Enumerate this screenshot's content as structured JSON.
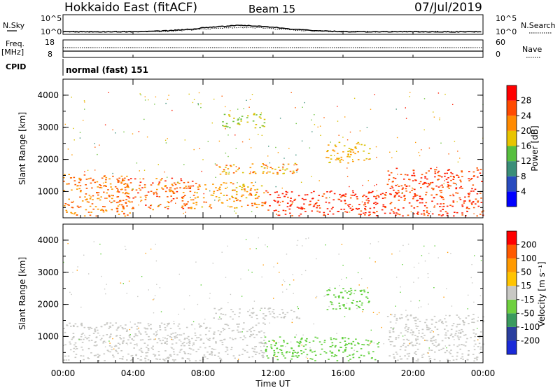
{
  "header": {
    "title": "Hokkaido East (fitACF)",
    "beam": "Beam 15",
    "date": "07/Jul/2019"
  },
  "sky_panel": {
    "left_label": "N.Sky",
    "left_ticks": [
      "10^5",
      "10^0"
    ],
    "right_label": "N.Search",
    "right_ticks": [
      "10^5",
      "10^0"
    ]
  },
  "freq_panel": {
    "left_label_1": "Freq.",
    "left_label_2": "[MHz]",
    "left_ticks": [
      "18",
      "8"
    ],
    "right_label": "Nave",
    "right_ticks": [
      "60",
      "0"
    ]
  },
  "cpid_panel": {
    "label": "CPID",
    "mode_text": "normal (fast) 151"
  },
  "power_panel": {
    "ylabel": "Slant Range [km]",
    "yticks": [
      "4000",
      "3000",
      "2000",
      "1000"
    ],
    "colorbar_label": "Power [dB]",
    "colorbar_ticks": [
      "28",
      "24",
      "20",
      "16",
      "12",
      "8",
      "4"
    ],
    "colorbar_colors": [
      "#0000ff",
      "#284bbf",
      "#3a8e78",
      "#57bf3f",
      "#e8c400",
      "#ff8a00",
      "#ff4a00",
      "#ff0000"
    ]
  },
  "velocity_panel": {
    "ylabel": "Slant Range [km]",
    "yticks": [
      "4000",
      "3000",
      "2000",
      "1000"
    ],
    "colorbar_label": "Velocity [m s⁻¹]",
    "colorbar_ticks": [
      "200",
      "100",
      "50",
      "15",
      "-15",
      "-50",
      "-100",
      "-200"
    ],
    "colorbar_colors": [
      "#ff0000",
      "#ff5a00",
      "#ff9a00",
      "#ffc400",
      "#c8c8c4",
      "#6fd03f",
      "#3a9a5e",
      "#2a3e9e",
      "#1a2ad8"
    ]
  },
  "x_axis": {
    "ticks": [
      "00:00",
      "04:00",
      "08:00",
      "12:00",
      "16:00",
      "20:00",
      "00:00"
    ],
    "label": "Time UT"
  },
  "chart_data": {
    "type": "heatmap",
    "x_range_hours": [
      0,
      24
    ],
    "y_range_km": [
      180,
      4500
    ],
    "power_regions": [
      {
        "t0": 0.0,
        "t1": 3.8,
        "r0": 250,
        "r1": 1550,
        "power_db": 22
      },
      {
        "t0": 3.0,
        "t1": 7.5,
        "r0": 450,
        "r1": 1450,
        "power_db": 24
      },
      {
        "t0": 7.5,
        "t1": 11.5,
        "r0": 500,
        "r1": 1300,
        "power_db": 20
      },
      {
        "t0": 11.5,
        "t1": 18.5,
        "r0": 250,
        "r1": 1050,
        "power_db": 28
      },
      {
        "t0": 8.5,
        "t1": 13.5,
        "r0": 1550,
        "r1": 1900,
        "power_db": 20
      },
      {
        "t0": 15.0,
        "t1": 17.5,
        "r0": 1900,
        "r1": 2550,
        "power_db": 18
      },
      {
        "t0": 18.5,
        "t1": 24.0,
        "r0": 250,
        "r1": 1750,
        "power_db": 26
      },
      {
        "t0": 9.0,
        "t1": 11.5,
        "r0": 3000,
        "r1": 3450,
        "power_db": 14
      }
    ],
    "velocity_regions": [
      {
        "t0": 0.0,
        "t1": 11.5,
        "r0": 250,
        "r1": 1450,
        "velocity_ms": 0
      },
      {
        "t0": 11.5,
        "t1": 18.0,
        "r0": 250,
        "r1": 1000,
        "velocity_ms": -30
      },
      {
        "t0": 15.0,
        "t1": 17.5,
        "r0": 1850,
        "r1": 2550,
        "velocity_ms": -25
      },
      {
        "t0": 18.5,
        "t1": 24.0,
        "r0": 250,
        "r1": 1700,
        "velocity_ms": 0
      },
      {
        "t0": 8.5,
        "t1": 13.5,
        "r0": 1550,
        "r1": 1900,
        "velocity_ms": 5
      }
    ],
    "nsky_peak_time_hours": 10.2
  }
}
